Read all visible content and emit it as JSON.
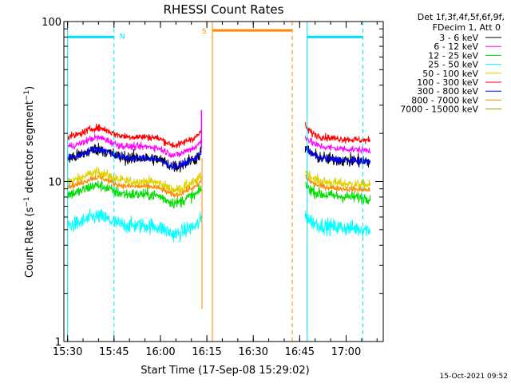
{
  "chart_data": {
    "type": "line",
    "title": "RHESSI Count Rates",
    "xlabel": "Start Time (17-Sep-08 15:29:02)",
    "ylabel_main": "Count Rate (s",
    "ylabel_sup": "−1",
    "ylabel_mid": " detector segment",
    "ylabel_sup2": "−1",
    "ylabel_end": ")",
    "yscale": "log",
    "xlim": [
      15.48,
      17.2
    ],
    "ylim": [
      1,
      100
    ],
    "x_ticks": [
      {
        "v": 15.5,
        "label": "15:30"
      },
      {
        "v": 15.75,
        "label": "15:45"
      },
      {
        "v": 16.0,
        "label": "16:00"
      },
      {
        "v": 16.25,
        "label": "16:15"
      },
      {
        "v": 16.5,
        "label": "16:30"
      },
      {
        "v": 16.75,
        "label": "16:45"
      },
      {
        "v": 17.0,
        "label": "17:00"
      }
    ],
    "y_ticks": [
      {
        "v": 1,
        "label": "1"
      },
      {
        "v": 10,
        "label": "10"
      },
      {
        "v": 100,
        "label": "100"
      }
    ],
    "legend_header": [
      "Det 1f,3f,4f,5f,6f,9f,",
      "FDecim 1, Att 0"
    ],
    "segments": [
      [
        15.5,
        16.22
      ],
      [
        16.78,
        17.13
      ]
    ],
    "series": [
      {
        "name": "3 - 6 keV",
        "color": "#000000",
        "base": 14.0,
        "noise": 0.09
      },
      {
        "name": "6 - 12 keV",
        "color": "#ff00ff",
        "base": 16.5,
        "noise": 0.05
      },
      {
        "name": "12 - 25 keV",
        "color": "#00dd00",
        "base": 8.3,
        "noise": 0.08
      },
      {
        "name": "25 - 50 keV",
        "color": "#00ffff",
        "base": 5.3,
        "noise": 0.11
      },
      {
        "name": "50 - 100 keV",
        "color": "#e0d000",
        "base": 10.0,
        "noise": 0.07
      },
      {
        "name": "100 - 300 keV",
        "color": "#ff0000",
        "base": 19.0,
        "noise": 0.05
      },
      {
        "name": "300 - 800 keV",
        "color": "#0000ff",
        "base": 14.0,
        "noise": 0.05
      },
      {
        "name": "800 - 7000 keV",
        "color": "#ff8800",
        "base": 9.3,
        "noise": 0.04
      },
      {
        "name": "7000 - 15000 keV",
        "color": "#999900",
        "base": 9.3,
        "noise": 0.01
      }
    ],
    "draw_order": [
      4,
      3,
      2,
      7,
      0,
      6,
      1,
      5
    ],
    "night_markers": {
      "color": "#00e0ff",
      "label": "N",
      "solid": [
        15.5,
        16.79
      ],
      "dashed": [
        15.75,
        17.09
      ],
      "bars": [
        [
          15.5,
          15.75
        ],
        [
          16.79,
          17.09
        ]
      ]
    },
    "saa_markers": {
      "color": "#ff8800",
      "label": "S",
      "solid": [
        16.28
      ],
      "dashed": [
        16.71
      ],
      "bar": [
        16.28,
        16.71
      ]
    }
  },
  "footer": {
    "timestamp": "15-Oct-2021 09:52"
  }
}
